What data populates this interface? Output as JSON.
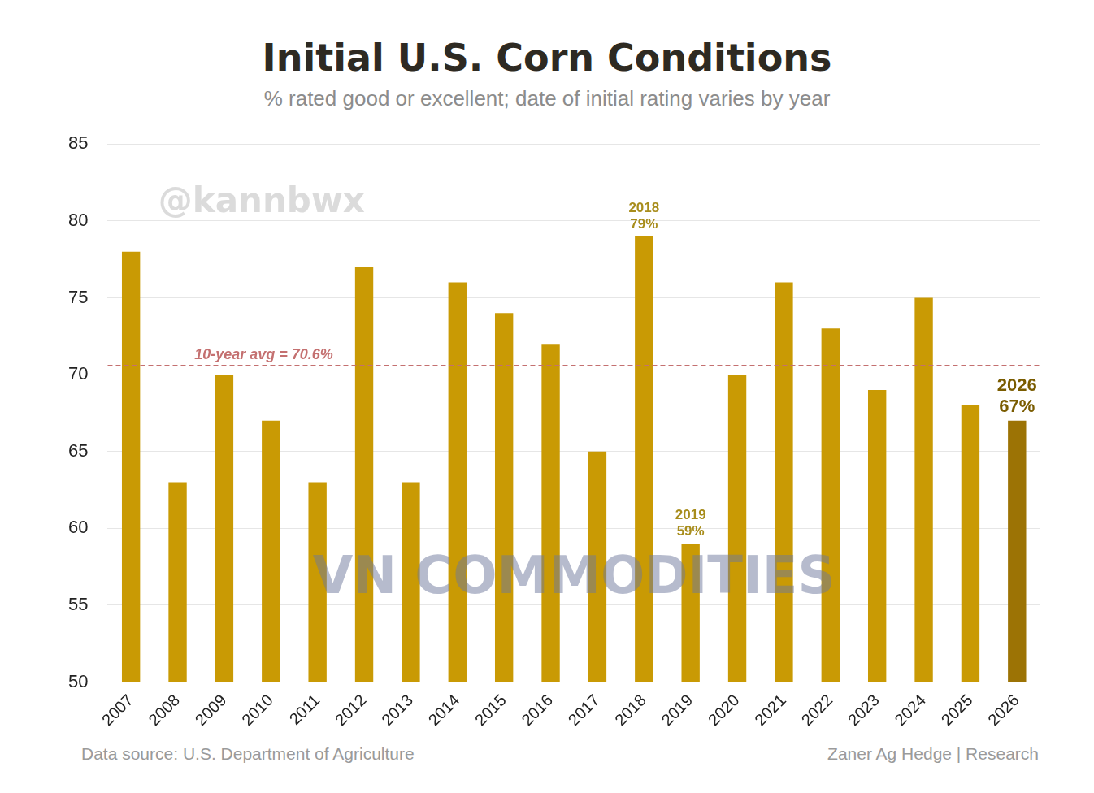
{
  "chart_data": {
    "type": "bar",
    "title": "Initial U.S. Corn Conditions",
    "subtitle": "% rated good or excellent; date of initial rating varies by year",
    "categories": [
      "2007",
      "2008",
      "2009",
      "2010",
      "2011",
      "2012",
      "2013",
      "2014",
      "2015",
      "2016",
      "2017",
      "2018",
      "2019",
      "2020",
      "2021",
      "2022",
      "2023",
      "2024",
      "2025",
      "2026"
    ],
    "values": [
      78,
      63,
      70,
      67,
      63,
      77,
      63,
      76,
      74,
      72,
      65,
      79,
      59,
      70,
      76,
      73,
      69,
      75,
      68,
      67
    ],
    "colors": [
      "#c99a04",
      "#c99a04",
      "#c99a04",
      "#c99a04",
      "#c99a04",
      "#c99a04",
      "#c99a04",
      "#c99a04",
      "#c99a04",
      "#c99a04",
      "#c99a04",
      "#c99a04",
      "#c99a04",
      "#c99a04",
      "#c99a04",
      "#c99a04",
      "#c99a04",
      "#c99a04",
      "#c99a04",
      "#9c7305"
    ],
    "ylim": [
      50,
      85
    ],
    "yticks": [
      50,
      55,
      60,
      65,
      70,
      75,
      80,
      85
    ],
    "grid": true,
    "annotations": [
      {
        "type": "hline",
        "y": 70.6,
        "text": "10-year avg = 70.6%",
        "color": "#c47070"
      },
      {
        "type": "bar_label",
        "category": "2018",
        "text": [
          "2018",
          "79%"
        ],
        "color": "#a88d1c"
      },
      {
        "type": "bar_label",
        "category": "2019",
        "text": [
          "2019",
          "59%"
        ],
        "color": "#a88d1c"
      },
      {
        "type": "bar_label",
        "category": "2026",
        "text": [
          "2026",
          "67%"
        ],
        "color": "#7a5c00"
      }
    ],
    "watermarks": [
      "@kannbwx",
      "VN COMMODITIES"
    ],
    "source": "Data source: U.S. Department of Agriculture",
    "credit": "Zaner Ag Hedge | Research"
  }
}
